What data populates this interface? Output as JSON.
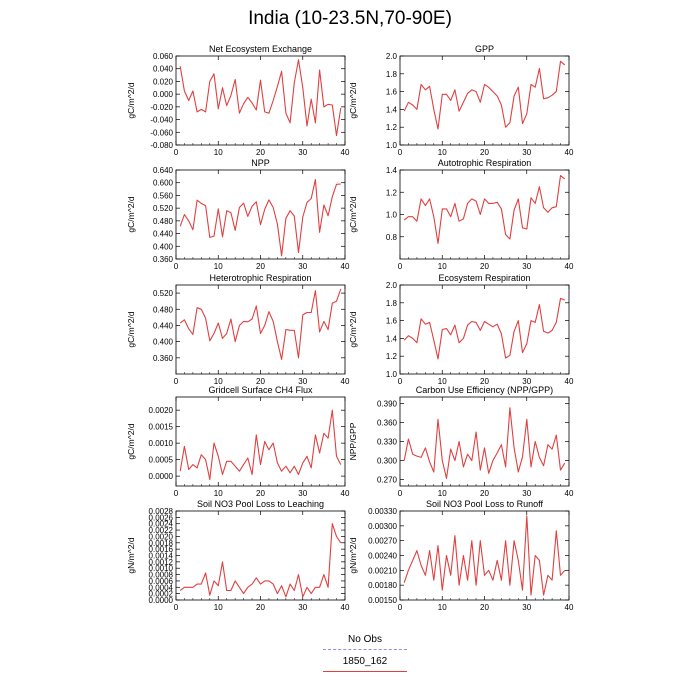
{
  "title": "India (10-23.5N,70-90E)",
  "legend": {
    "items": [
      {
        "label": "No Obs",
        "color": "#8f8ff0",
        "style": "dashed"
      },
      {
        "label": "1850_162",
        "color": "#e04040",
        "style": "solid"
      }
    ]
  },
  "chart_data": [
    {
      "type": "line",
      "title": "Net Ecosystem Exchange",
      "ylabel": "gC/m^2/d",
      "xlim": [
        0,
        40
      ],
      "ylim": [
        -0.08,
        0.06
      ],
      "xticks": [
        0,
        10,
        20,
        30,
        40
      ],
      "yticks": [
        "-0.080",
        "-0.060",
        "-0.040",
        "-0.020",
        "0.000",
        "0.020",
        "0.040",
        "0.060"
      ],
      "series": [
        {
          "color": "#e04040",
          "x": [
            1,
            2,
            3,
            4,
            5,
            6,
            7,
            8,
            9,
            10,
            11,
            12,
            13,
            14,
            15,
            16,
            17,
            18,
            19,
            20,
            21,
            22,
            23,
            24,
            25,
            26,
            27,
            28,
            29,
            30,
            31,
            32,
            33,
            34,
            35,
            36,
            37,
            38,
            39
          ],
          "y": [
            0.044,
            0.005,
            -0.01,
            0.005,
            -0.028,
            -0.024,
            -0.028,
            0.02,
            0.032,
            -0.023,
            0.01,
            -0.018,
            -0.002,
            0.023,
            -0.03,
            -0.015,
            -0.005,
            -0.014,
            -0.025,
            0.022,
            -0.028,
            -0.03,
            -0.01,
            0.012,
            0.036,
            -0.03,
            -0.045,
            0.018,
            0.054,
            0.01,
            -0.05,
            -0.008,
            -0.045,
            0.038,
            -0.02,
            -0.016,
            -0.017,
            -0.065,
            -0.022
          ]
        }
      ]
    },
    {
      "type": "line",
      "title": "GPP",
      "ylabel": "gC/m^2/d",
      "xlim": [
        0,
        40
      ],
      "ylim": [
        1.0,
        2.0
      ],
      "xticks": [
        0,
        10,
        20,
        30,
        40
      ],
      "yticks": [
        "1.0",
        "1.2",
        "1.4",
        "1.6",
        "1.8",
        "2.0"
      ],
      "series": [
        {
          "color": "#e04040",
          "x": [
            1,
            2,
            3,
            4,
            5,
            6,
            7,
            8,
            9,
            10,
            11,
            12,
            13,
            14,
            15,
            16,
            17,
            18,
            19,
            20,
            21,
            22,
            23,
            24,
            25,
            26,
            27,
            28,
            29,
            30,
            31,
            32,
            33,
            34,
            35,
            36,
            37,
            38,
            39
          ],
          "y": [
            1.38,
            1.48,
            1.45,
            1.4,
            1.68,
            1.62,
            1.66,
            1.4,
            1.18,
            1.57,
            1.57,
            1.5,
            1.62,
            1.38,
            1.48,
            1.58,
            1.62,
            1.6,
            1.48,
            1.68,
            1.65,
            1.6,
            1.55,
            1.45,
            1.2,
            1.25,
            1.55,
            1.65,
            1.24,
            1.35,
            1.68,
            1.65,
            1.86,
            1.52,
            1.53,
            1.56,
            1.6,
            1.94,
            1.9
          ]
        }
      ]
    },
    {
      "type": "line",
      "title": "NPP",
      "ylabel": "gC/m^2/d",
      "xlim": [
        0,
        40
      ],
      "ylim": [
        0.36,
        0.64
      ],
      "xticks": [
        0,
        10,
        20,
        30,
        40
      ],
      "yticks": [
        "0.360",
        "0.400",
        "0.440",
        "0.480",
        "0.520",
        "0.560",
        "0.600",
        "0.640"
      ],
      "series": [
        {
          "color": "#e04040",
          "x": [
            1,
            2,
            3,
            4,
            5,
            6,
            7,
            8,
            9,
            10,
            11,
            12,
            13,
            14,
            15,
            16,
            17,
            18,
            19,
            20,
            21,
            22,
            23,
            24,
            25,
            26,
            27,
            28,
            29,
            30,
            31,
            32,
            33,
            34,
            35,
            36,
            37,
            38,
            39
          ],
          "y": [
            0.463,
            0.5,
            0.48,
            0.452,
            0.545,
            0.535,
            0.528,
            0.428,
            0.432,
            0.518,
            0.43,
            0.512,
            0.506,
            0.45,
            0.522,
            0.536,
            0.494,
            0.526,
            0.54,
            0.468,
            0.516,
            0.546,
            0.522,
            0.47,
            0.37,
            0.488,
            0.512,
            0.495,
            0.38,
            0.492,
            0.538,
            0.55,
            0.61,
            0.444,
            0.53,
            0.496,
            0.556,
            0.595,
            0.596
          ]
        }
      ]
    },
    {
      "type": "line",
      "title": "Autotrophic Respiration",
      "ylabel": "gC/m^2/d",
      "xlim": [
        0,
        40
      ],
      "ylim": [
        0.6,
        1.4
      ],
      "xticks": [
        0,
        10,
        20,
        30,
        40
      ],
      "yticks": [
        "0.8",
        "1.0",
        "1.2",
        "1.4"
      ],
      "series": [
        {
          "color": "#e04040",
          "x": [
            1,
            2,
            3,
            4,
            5,
            6,
            7,
            8,
            9,
            10,
            11,
            12,
            13,
            14,
            15,
            16,
            17,
            18,
            19,
            20,
            21,
            22,
            23,
            24,
            25,
            26,
            27,
            28,
            29,
            30,
            31,
            32,
            33,
            34,
            35,
            36,
            37,
            38,
            39
          ],
          "y": [
            0.95,
            0.98,
            0.98,
            0.94,
            1.14,
            1.08,
            1.14,
            0.98,
            0.74,
            1.05,
            1.05,
            0.98,
            1.1,
            0.94,
            0.96,
            1.1,
            1.14,
            1.12,
            1.0,
            1.14,
            1.1,
            1.1,
            1.11,
            1.05,
            0.82,
            0.78,
            1.04,
            1.14,
            0.88,
            0.87,
            1.15,
            1.1,
            1.25,
            1.06,
            1.02,
            1.06,
            1.07,
            1.35,
            1.32
          ]
        }
      ]
    },
    {
      "type": "line",
      "title": "Heterotrophic Respiration",
      "ylabel": "gC/m^2/d",
      "xlim": [
        0,
        40
      ],
      "ylim": [
        0.32,
        0.54
      ],
      "xticks": [
        0,
        10,
        20,
        30,
        40
      ],
      "yticks": [
        "0.360",
        "0.400",
        "0.440",
        "0.480",
        "0.520"
      ],
      "series": [
        {
          "color": "#e04040",
          "x": [
            1,
            2,
            3,
            4,
            5,
            6,
            7,
            8,
            9,
            10,
            11,
            12,
            13,
            14,
            15,
            16,
            17,
            18,
            19,
            20,
            21,
            22,
            23,
            24,
            25,
            26,
            27,
            28,
            29,
            30,
            31,
            32,
            33,
            34,
            35,
            36,
            37,
            38,
            39
          ],
          "y": [
            0.446,
            0.454,
            0.432,
            0.418,
            0.484,
            0.48,
            0.458,
            0.402,
            0.42,
            0.446,
            0.408,
            0.42,
            0.456,
            0.4,
            0.44,
            0.45,
            0.449,
            0.456,
            0.488,
            0.42,
            0.44,
            0.474,
            0.45,
            0.4,
            0.356,
            0.43,
            0.428,
            0.428,
            0.36,
            0.466,
            0.472,
            0.472,
            0.526,
            0.424,
            0.45,
            0.43,
            0.495,
            0.5,
            0.53
          ]
        }
      ]
    },
    {
      "type": "line",
      "title": "Ecosystem Respiration",
      "ylabel": "gC/m^2/d",
      "xlim": [
        0,
        40
      ],
      "ylim": [
        1.0,
        2.0
      ],
      "xticks": [
        0,
        10,
        20,
        30,
        40
      ],
      "yticks": [
        "1.0",
        "1.2",
        "1.4",
        "1.6",
        "1.8",
        "2.0"
      ],
      "series": [
        {
          "color": "#e04040",
          "x": [
            1,
            2,
            3,
            4,
            5,
            6,
            7,
            8,
            9,
            10,
            11,
            12,
            13,
            14,
            15,
            16,
            17,
            18,
            19,
            20,
            21,
            22,
            23,
            24,
            25,
            26,
            27,
            28,
            29,
            30,
            31,
            32,
            33,
            34,
            35,
            36,
            37,
            38,
            39
          ],
          "y": [
            1.38,
            1.43,
            1.4,
            1.35,
            1.62,
            1.56,
            1.58,
            1.38,
            1.17,
            1.5,
            1.51,
            1.44,
            1.55,
            1.35,
            1.4,
            1.55,
            1.59,
            1.58,
            1.49,
            1.59,
            1.56,
            1.53,
            1.56,
            1.45,
            1.18,
            1.21,
            1.48,
            1.6,
            1.24,
            1.34,
            1.6,
            1.58,
            1.78,
            1.48,
            1.46,
            1.49,
            1.58,
            1.85,
            1.83
          ]
        }
      ]
    },
    {
      "type": "line",
      "title": "Gridcell Surface CH4 Flux",
      "ylabel": "gC/m^2/d",
      "xlim": [
        0,
        40
      ],
      "ylim": [
        -0.0003,
        0.0024
      ],
      "xticks": [
        0,
        10,
        20,
        30,
        40
      ],
      "yticks": [
        "0.0000",
        "0.0005",
        "0.0010",
        "0.0015",
        "0.0020"
      ],
      "series": [
        {
          "color": "#e04040",
          "x": [
            1,
            2,
            3,
            4,
            5,
            6,
            7,
            8,
            9,
            10,
            11,
            12,
            13,
            14,
            15,
            16,
            17,
            18,
            19,
            20,
            21,
            22,
            23,
            24,
            25,
            26,
            27,
            28,
            29,
            30,
            31,
            32,
            33,
            34,
            35,
            36,
            37,
            38,
            39
          ],
          "y": [
            0.00015,
            0.0009,
            0.0002,
            0.00035,
            0.00025,
            0.00065,
            0.0005,
            -0.0001,
            0.001,
            0.0006,
            5e-05,
            0.00045,
            0.00045,
            0.0003,
            0.00015,
            0.00035,
            0.00055,
            5e-05,
            0.00125,
            0.00035,
            0.00105,
            0.0008,
            0.001,
            0.0004,
            0.00015,
            0.0003,
            0.0001,
            0.0003,
            5e-05,
            0.0004,
            0.0006,
            0.00025,
            0.00125,
            0.0007,
            0.0013,
            0.00115,
            0.002,
            0.0006,
            0.00035
          ]
        }
      ]
    },
    {
      "type": "line",
      "title": "Carbon Use Efficiency (NPP/GPP)",
      "ylabel": "NPP/GPP",
      "xlim": [
        0,
        40
      ],
      "ylim": [
        0.26,
        0.4
      ],
      "xticks": [
        0,
        10,
        20,
        30,
        40
      ],
      "yticks": [
        "0.270",
        "0.300",
        "0.330",
        "0.360",
        "0.390"
      ],
      "series": [
        {
          "color": "#e04040",
          "x": [
            1,
            2,
            3,
            4,
            5,
            6,
            7,
            8,
            9,
            10,
            11,
            12,
            13,
            14,
            15,
            16,
            17,
            18,
            19,
            20,
            21,
            22,
            23,
            24,
            25,
            26,
            27,
            28,
            29,
            30,
            31,
            32,
            33,
            34,
            35,
            36,
            37,
            38,
            39
          ],
          "y": [
            0.3,
            0.334,
            0.31,
            0.307,
            0.305,
            0.32,
            0.298,
            0.282,
            0.365,
            0.3,
            0.272,
            0.318,
            0.3,
            0.33,
            0.29,
            0.31,
            0.3,
            0.345,
            0.285,
            0.32,
            0.28,
            0.3,
            0.312,
            0.325,
            0.29,
            0.383,
            0.32,
            0.282,
            0.306,
            0.365,
            0.29,
            0.33,
            0.305,
            0.292,
            0.325,
            0.318,
            0.34,
            0.285,
            0.296
          ]
        }
      ]
    },
    {
      "type": "line",
      "title": "Soil NO3 Pool Loss to Leaching",
      "ylabel": "gN/m^2/d",
      "xlim": [
        0,
        40
      ],
      "ylim": [
        0,
        0.0028
      ],
      "xticks": [
        0,
        10,
        20,
        30,
        40
      ],
      "yticks": [
        "0.0000",
        "0.0002",
        "0.0004",
        "0.0006",
        "0.0008",
        "0.0010",
        "0.0012",
        "0.0014",
        "0.0016",
        "0.0018",
        "0.0020",
        "0.0022",
        "0.0024",
        "0.0026",
        "0.0028"
      ],
      "series": [
        {
          "color": "#e04040",
          "x": [
            1,
            2,
            3,
            4,
            5,
            6,
            7,
            8,
            9,
            10,
            11,
            12,
            13,
            14,
            15,
            16,
            17,
            18,
            19,
            20,
            21,
            22,
            23,
            24,
            25,
            26,
            27,
            28,
            29,
            30,
            31,
            32,
            33,
            34,
            35,
            36,
            37,
            38,
            39
          ],
          "y": [
            0.0003,
            0.0004,
            0.0004,
            0.0004,
            0.0005,
            0.0005,
            0.00085,
            0.00015,
            0.0006,
            0.00045,
            0.0012,
            0.0003,
            0.0003,
            0.0006,
            0.0004,
            0.0002,
            0.0004,
            0.0005,
            0.0007,
            0.0005,
            0.0006,
            0.0006,
            0.0005,
            0.0002,
            0.00045,
            0.0001,
            0.0005,
            0.0003,
            0.0008,
            0.0001,
            0.0004,
            0.0002,
            0.0004,
            0.0004,
            0.0008,
            0.0004,
            0.0024,
            0.002,
            0.0018
          ]
        }
      ]
    },
    {
      "type": "line",
      "title": "Soil NO3 Pool Loss to Runoff",
      "ylabel": "gN/m^2/d",
      "xlim": [
        0,
        40
      ],
      "ylim": [
        0.0015,
        0.0033
      ],
      "xticks": [
        0,
        10,
        20,
        30,
        40
      ],
      "yticks": [
        "0.00150",
        "0.00180",
        "0.00210",
        "0.00240",
        "0.00270",
        "0.00300",
        "0.00330"
      ],
      "series": [
        {
          "color": "#e04040",
          "x": [
            1,
            2,
            3,
            4,
            5,
            6,
            7,
            8,
            9,
            10,
            11,
            12,
            13,
            14,
            15,
            16,
            17,
            18,
            19,
            20,
            21,
            22,
            23,
            24,
            25,
            26,
            27,
            28,
            29,
            30,
            31,
            32,
            33,
            34,
            35,
            36,
            37,
            38,
            39
          ],
          "y": [
            0.00185,
            0.0021,
            0.0023,
            0.0025,
            0.0022,
            0.002,
            0.0025,
            0.0019,
            0.0026,
            0.0017,
            0.0024,
            0.002,
            0.0028,
            0.0018,
            0.0024,
            0.0019,
            0.0027,
            0.0018,
            0.0027,
            0.002,
            0.0021,
            0.0019,
            0.0023,
            0.0019,
            0.0027,
            0.0018,
            0.0027,
            0.0023,
            0.0017,
            0.0032,
            0.0016,
            0.0024,
            0.0023,
            0.0016,
            0.002,
            0.0019,
            0.0029,
            0.002,
            0.0021
          ]
        }
      ]
    }
  ]
}
